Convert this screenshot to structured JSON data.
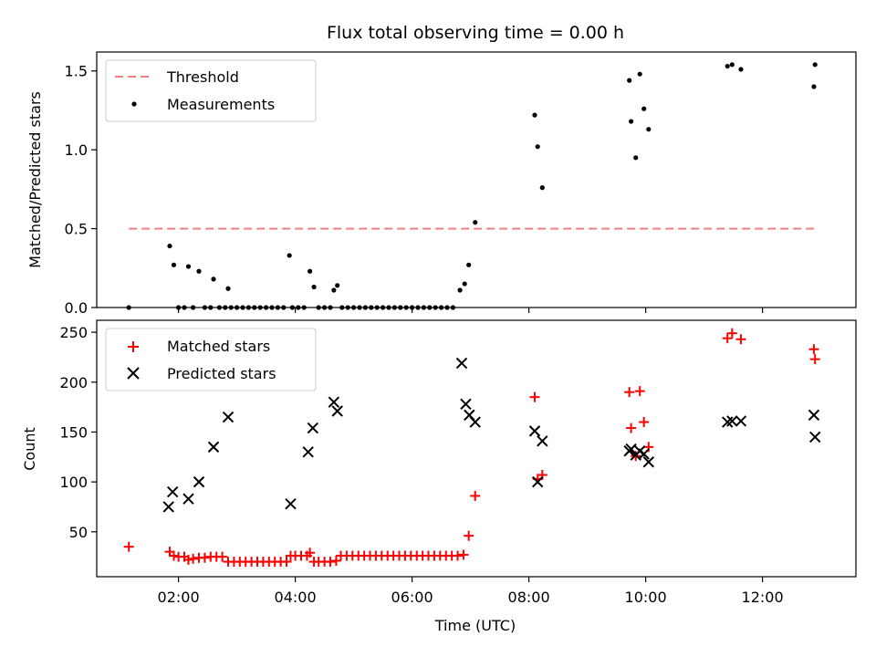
{
  "chart_data": {
    "title": "Flux total observing time = 0.00 h",
    "xlabel": "Time (UTC)",
    "x_ticks": [
      "02:00",
      "04:00",
      "06:00",
      "08:00",
      "10:00",
      "12:00"
    ],
    "x_tick_hours": [
      2,
      4,
      6,
      8,
      10,
      12
    ],
    "xlim_hours": [
      0.6,
      13.6
    ],
    "panels": [
      {
        "type": "scatter",
        "ylabel": "Matched/Predicted stars",
        "ylim": [
          0,
          1.62
        ],
        "y_ticks": [
          0.0,
          0.5,
          1.0,
          1.5
        ],
        "y_tick_labels": [
          "0.0",
          "0.5",
          "1.0",
          "1.5"
        ],
        "legend_position": "upper-left",
        "legend": [
          "Threshold",
          "Measurements"
        ],
        "threshold": {
          "name": "Threshold",
          "value": 0.5,
          "x_start": 1.15,
          "x_end": 12.9,
          "color": "#f08080"
        },
        "measurements": {
          "name": "Measurements",
          "color": "#000000",
          "points": [
            [
              1.15,
              0.0
            ],
            [
              1.85,
              0.39
            ],
            [
              1.92,
              0.27
            ],
            [
              2.0,
              0.0
            ],
            [
              2.1,
              0.0
            ],
            [
              2.17,
              0.26
            ],
            [
              2.25,
              0.0
            ],
            [
              2.35,
              0.23
            ],
            [
              2.45,
              0.0
            ],
            [
              2.55,
              0.0
            ],
            [
              2.6,
              0.18
            ],
            [
              2.7,
              0.0
            ],
            [
              2.8,
              0.0
            ],
            [
              2.85,
              0.12
            ],
            [
              2.9,
              0.0
            ],
            [
              3.0,
              0.0
            ],
            [
              3.1,
              0.0
            ],
            [
              3.2,
              0.0
            ],
            [
              3.3,
              0.0
            ],
            [
              3.4,
              0.0
            ],
            [
              3.5,
              0.0
            ],
            [
              3.6,
              0.0
            ],
            [
              3.7,
              0.0
            ],
            [
              3.8,
              0.0
            ],
            [
              3.9,
              0.33
            ],
            [
              3.95,
              0.0
            ],
            [
              4.05,
              0.0
            ],
            [
              4.15,
              0.0
            ],
            [
              4.25,
              0.23
            ],
            [
              4.32,
              0.13
            ],
            [
              4.4,
              0.0
            ],
            [
              4.5,
              0.0
            ],
            [
              4.6,
              0.0
            ],
            [
              4.66,
              0.11
            ],
            [
              4.72,
              0.14
            ],
            [
              4.8,
              0.0
            ],
            [
              4.9,
              0.0
            ],
            [
              5.0,
              0.0
            ],
            [
              5.1,
              0.0
            ],
            [
              5.2,
              0.0
            ],
            [
              5.3,
              0.0
            ],
            [
              5.4,
              0.0
            ],
            [
              5.5,
              0.0
            ],
            [
              5.6,
              0.0
            ],
            [
              5.7,
              0.0
            ],
            [
              5.8,
              0.0
            ],
            [
              5.9,
              0.0
            ],
            [
              6.0,
              0.0
            ],
            [
              6.1,
              0.0
            ],
            [
              6.2,
              0.0
            ],
            [
              6.3,
              0.0
            ],
            [
              6.4,
              0.0
            ],
            [
              6.5,
              0.0
            ],
            [
              6.6,
              0.0
            ],
            [
              6.7,
              0.0
            ],
            [
              6.82,
              0.11
            ],
            [
              6.9,
              0.15
            ],
            [
              6.97,
              0.27
            ],
            [
              7.08,
              0.54
            ],
            [
              8.1,
              1.22
            ],
            [
              8.15,
              1.02
            ],
            [
              8.23,
              0.76
            ],
            [
              9.72,
              1.44
            ],
            [
              9.75,
              1.18
            ],
            [
              9.83,
              0.95
            ],
            [
              9.9,
              1.48
            ],
            [
              9.97,
              1.26
            ],
            [
              10.05,
              1.13
            ],
            [
              11.4,
              1.53
            ],
            [
              11.48,
              1.54
            ],
            [
              11.63,
              1.51
            ],
            [
              12.9,
              1.54
            ],
            [
              12.88,
              1.4
            ]
          ]
        }
      },
      {
        "type": "scatter",
        "ylabel": "Count",
        "ylim": [
          5,
          262
        ],
        "y_ticks": [
          50,
          100,
          150,
          200,
          250
        ],
        "y_tick_labels": [
          "50",
          "100",
          "150",
          "200",
          "250"
        ],
        "legend_position": "upper-left",
        "legend": [
          "Matched stars",
          "Predicted stars"
        ],
        "series": [
          {
            "name": "Matched stars",
            "marker": "plus",
            "color": "#ff0000",
            "points": [
              [
                1.15,
                35
              ],
              [
                1.85,
                30
              ],
              [
                1.92,
                26
              ],
              [
                2.0,
                25
              ],
              [
                2.1,
                25
              ],
              [
                2.17,
                22
              ],
              [
                2.25,
                23
              ],
              [
                2.35,
                24
              ],
              [
                2.45,
                24
              ],
              [
                2.55,
                25
              ],
              [
                2.65,
                25
              ],
              [
                2.75,
                25
              ],
              [
                2.85,
                20
              ],
              [
                2.95,
                20
              ],
              [
                3.05,
                20
              ],
              [
                3.15,
                20
              ],
              [
                3.25,
                20
              ],
              [
                3.35,
                20
              ],
              [
                3.45,
                20
              ],
              [
                3.55,
                20
              ],
              [
                3.65,
                20
              ],
              [
                3.75,
                20
              ],
              [
                3.85,
                20
              ],
              [
                3.92,
                26
              ],
              [
                4.0,
                26
              ],
              [
                4.1,
                26
              ],
              [
                4.2,
                26
              ],
              [
                4.25,
                29
              ],
              [
                4.32,
                20
              ],
              [
                4.4,
                20
              ],
              [
                4.5,
                20
              ],
              [
                4.6,
                20
              ],
              [
                4.7,
                21
              ],
              [
                4.78,
                26
              ],
              [
                4.88,
                26
              ],
              [
                4.98,
                26
              ],
              [
                5.08,
                26
              ],
              [
                5.18,
                26
              ],
              [
                5.28,
                26
              ],
              [
                5.38,
                26
              ],
              [
                5.48,
                26
              ],
              [
                5.58,
                26
              ],
              [
                5.68,
                26
              ],
              [
                5.78,
                26
              ],
              [
                5.88,
                26
              ],
              [
                5.98,
                26
              ],
              [
                6.08,
                26
              ],
              [
                6.18,
                26
              ],
              [
                6.28,
                26
              ],
              [
                6.38,
                26
              ],
              [
                6.48,
                26
              ],
              [
                6.58,
                26
              ],
              [
                6.68,
                26
              ],
              [
                6.78,
                26
              ],
              [
                6.88,
                27
              ],
              [
                6.97,
                46
              ],
              [
                7.08,
                86
              ],
              [
                8.1,
                185
              ],
              [
                8.15,
                103
              ],
              [
                8.23,
                107
              ],
              [
                9.72,
                190
              ],
              [
                9.75,
                154
              ],
              [
                9.83,
                126
              ],
              [
                9.9,
                191
              ],
              [
                9.97,
                160
              ],
              [
                10.05,
                135
              ],
              [
                11.4,
                244
              ],
              [
                11.48,
                249
              ],
              [
                11.63,
                243
              ],
              [
                12.88,
                233
              ],
              [
                12.9,
                223
              ]
            ]
          },
          {
            "name": "Predicted stars",
            "marker": "x",
            "color": "#000000",
            "points": [
              [
                1.83,
                75
              ],
              [
                1.9,
                90
              ],
              [
                2.17,
                83
              ],
              [
                2.35,
                100
              ],
              [
                2.6,
                135
              ],
              [
                2.85,
                165
              ],
              [
                3.92,
                78
              ],
              [
                4.22,
                130
              ],
              [
                4.3,
                154
              ],
              [
                4.66,
                180
              ],
              [
                4.72,
                171
              ],
              [
                6.85,
                219
              ],
              [
                6.92,
                178
              ],
              [
                6.98,
                167
              ],
              [
                7.08,
                160
              ],
              [
                8.1,
                151
              ],
              [
                8.15,
                100
              ],
              [
                8.23,
                141
              ],
              [
                9.72,
                131
              ],
              [
                9.75,
                133
              ],
              [
                9.83,
                127
              ],
              [
                9.9,
                131
              ],
              [
                9.97,
                128
              ],
              [
                10.05,
                120
              ],
              [
                11.4,
                160
              ],
              [
                11.48,
                161
              ],
              [
                11.63,
                161
              ],
              [
                12.88,
                167
              ],
              [
                12.9,
                145
              ]
            ]
          }
        ]
      }
    ]
  }
}
